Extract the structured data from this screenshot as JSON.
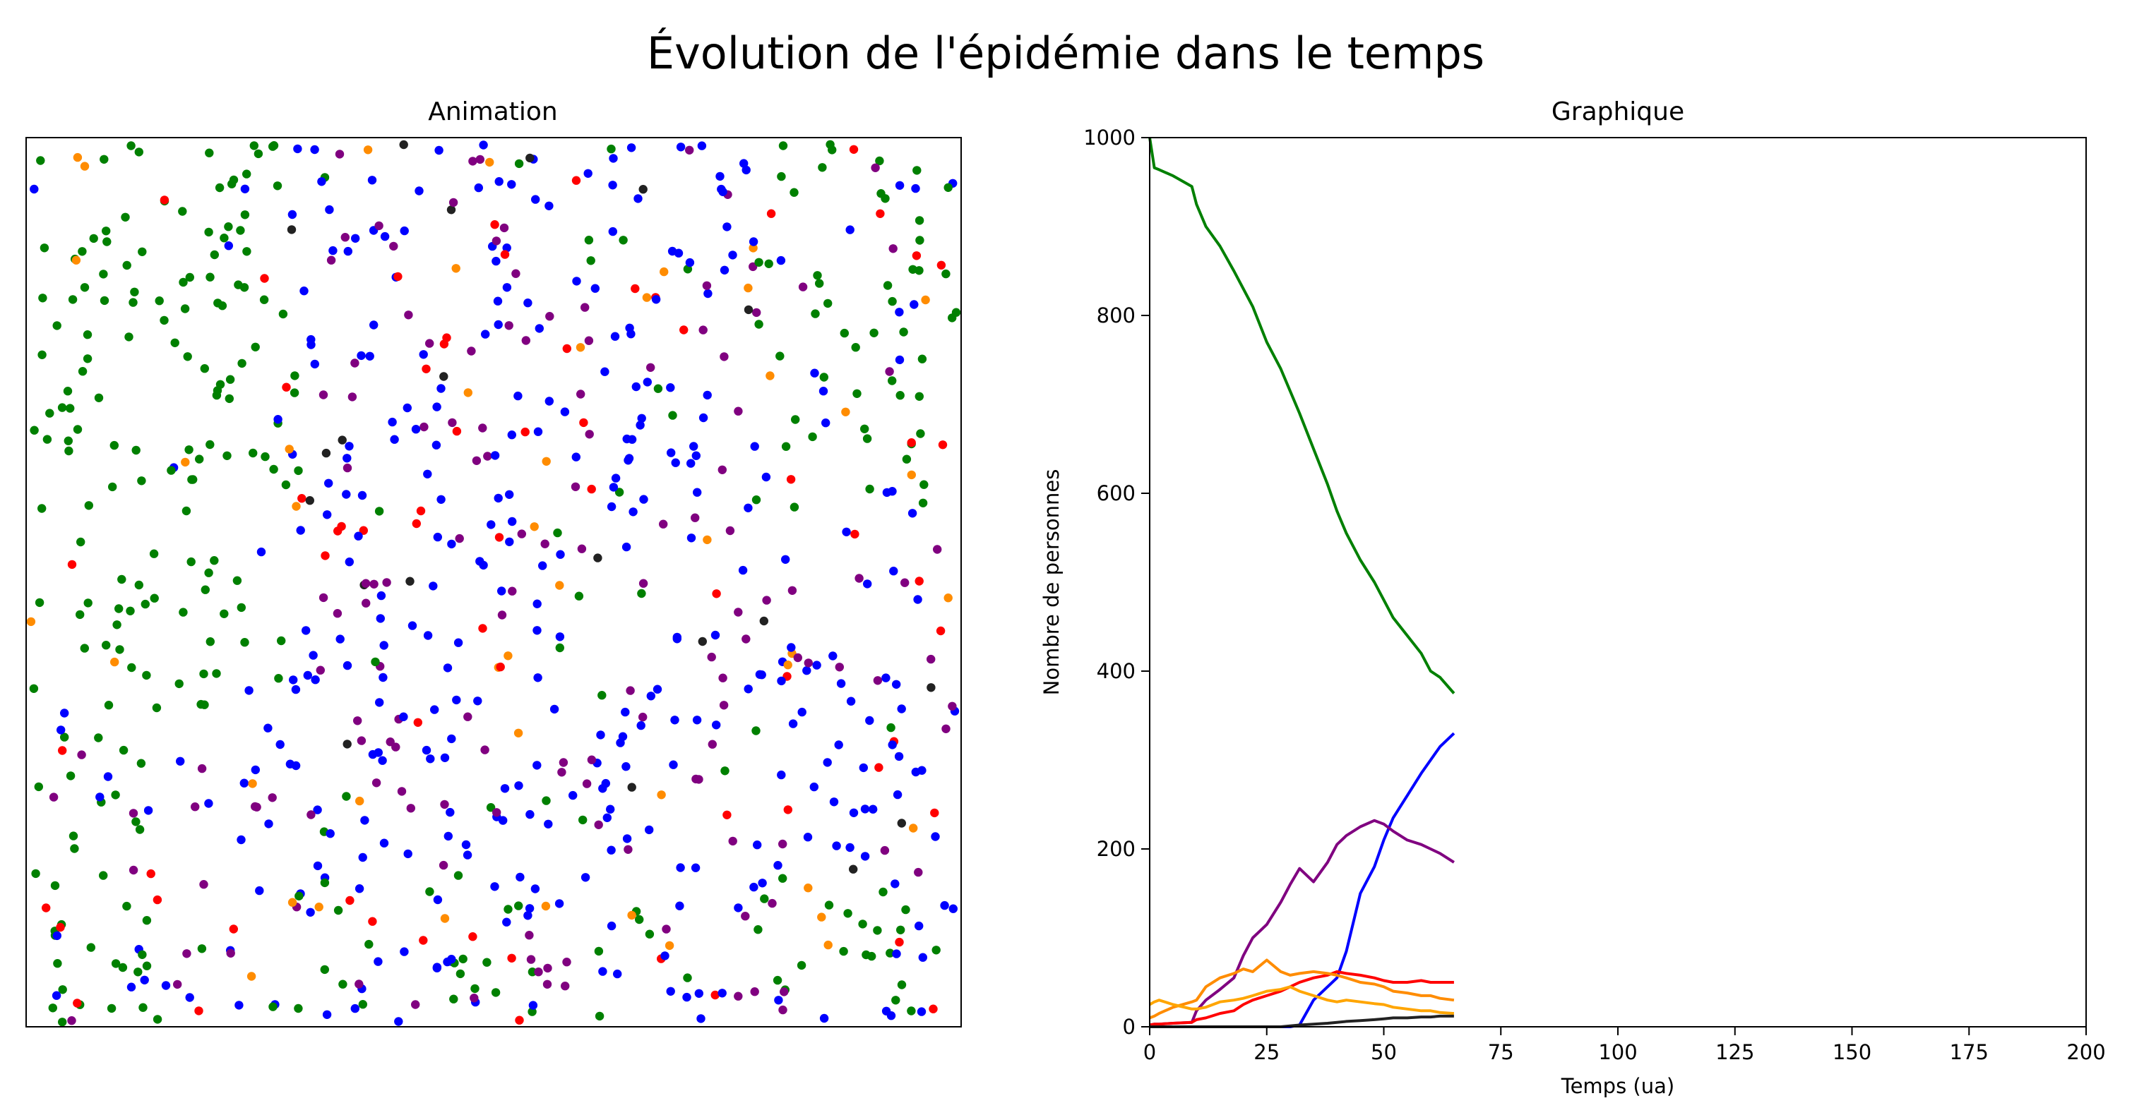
{
  "figure": {
    "suptitle": "Évolution de l'épidémie dans le temps"
  },
  "colors": {
    "sain": "#008000",
    "infecte": "#ff0000",
    "incubation": "#ff8c00",
    "immunise": "#0000ff",
    "guerison": "#800080",
    "mort": "#222222",
    "jaune": "#ffa500"
  },
  "chart_data": [
    {
      "type": "scatter",
      "title": "Animation",
      "xlabel": "",
      "ylabel": "",
      "axes_visible": false,
      "grid": false,
      "xlim": [
        0,
        1
      ],
      "ylim": [
        0,
        1
      ],
      "point_counts_estimated": {
        "green": 330,
        "blue": 330,
        "purple": 160,
        "red": 50,
        "orange": 40,
        "black": 12
      },
      "note_points": "procedurally approximated spatial distribution: green mostly upper-left and lower-left, blue and purple across center and right"
    },
    {
      "type": "line",
      "title": "Graphique",
      "xlabel": "Temps (ua)",
      "ylabel": "Nombre de personnes",
      "xlim": [
        0,
        200
      ],
      "ylim": [
        0,
        1000
      ],
      "xticks": [
        0,
        25,
        50,
        75,
        100,
        125,
        150,
        175,
        200
      ],
      "yticks": [
        0,
        200,
        400,
        600,
        800,
        1000
      ],
      "grid": false,
      "x": [
        0,
        1,
        2,
        5,
        9,
        10,
        12,
        15,
        18,
        20,
        22,
        25,
        28,
        30,
        32,
        35,
        38,
        40,
        42,
        45,
        48,
        50,
        52,
        55,
        58,
        60,
        62,
        65
      ],
      "series": [
        {
          "color": "#008000",
          "values": [
            1000,
            966,
            964,
            957,
            945,
            925,
            900,
            878,
            850,
            830,
            810,
            770,
            740,
            715,
            690,
            650,
            610,
            580,
            555,
            525,
            500,
            480,
            460,
            440,
            420,
            400,
            393,
            375
          ]
        },
        {
          "color": "#0000ff",
          "values": [
            0,
            0,
            0,
            0,
            0,
            0,
            0,
            0,
            0,
            0,
            0,
            0,
            0,
            0,
            2,
            30,
            45,
            55,
            85,
            150,
            180,
            210,
            235,
            260,
            285,
            300,
            315,
            330
          ]
        },
        {
          "color": "#800080",
          "values": [
            2,
            3,
            3,
            4,
            5,
            18,
            30,
            42,
            55,
            80,
            100,
            115,
            140,
            160,
            178,
            163,
            185,
            205,
            215,
            225,
            232,
            228,
            220,
            210,
            205,
            200,
            195,
            185
          ]
        },
        {
          "color": "#ff0000",
          "values": [
            2,
            3,
            3,
            4,
            5,
            8,
            10,
            15,
            18,
            25,
            30,
            35,
            40,
            45,
            50,
            55,
            58,
            62,
            60,
            58,
            55,
            52,
            50,
            50,
            52,
            50,
            50,
            50
          ]
        },
        {
          "color": "#ff8c00",
          "values": [
            10,
            12,
            15,
            22,
            28,
            30,
            45,
            55,
            60,
            65,
            62,
            75,
            62,
            58,
            60,
            62,
            60,
            58,
            55,
            50,
            48,
            45,
            40,
            38,
            35,
            35,
            32,
            30
          ]
        },
        {
          "color": "#ffa500",
          "values": [
            25,
            28,
            30,
            25,
            20,
            20,
            22,
            28,
            30,
            32,
            35,
            40,
            42,
            45,
            40,
            35,
            30,
            28,
            30,
            28,
            26,
            25,
            22,
            20,
            18,
            18,
            16,
            15
          ]
        },
        {
          "color": "#222222",
          "values": [
            0,
            0,
            0,
            0,
            0,
            0,
            0,
            0,
            0,
            0,
            0,
            0,
            0,
            1,
            2,
            3,
            4,
            5,
            6,
            7,
            8,
            9,
            10,
            10,
            11,
            11,
            12,
            12
          ]
        }
      ]
    }
  ]
}
